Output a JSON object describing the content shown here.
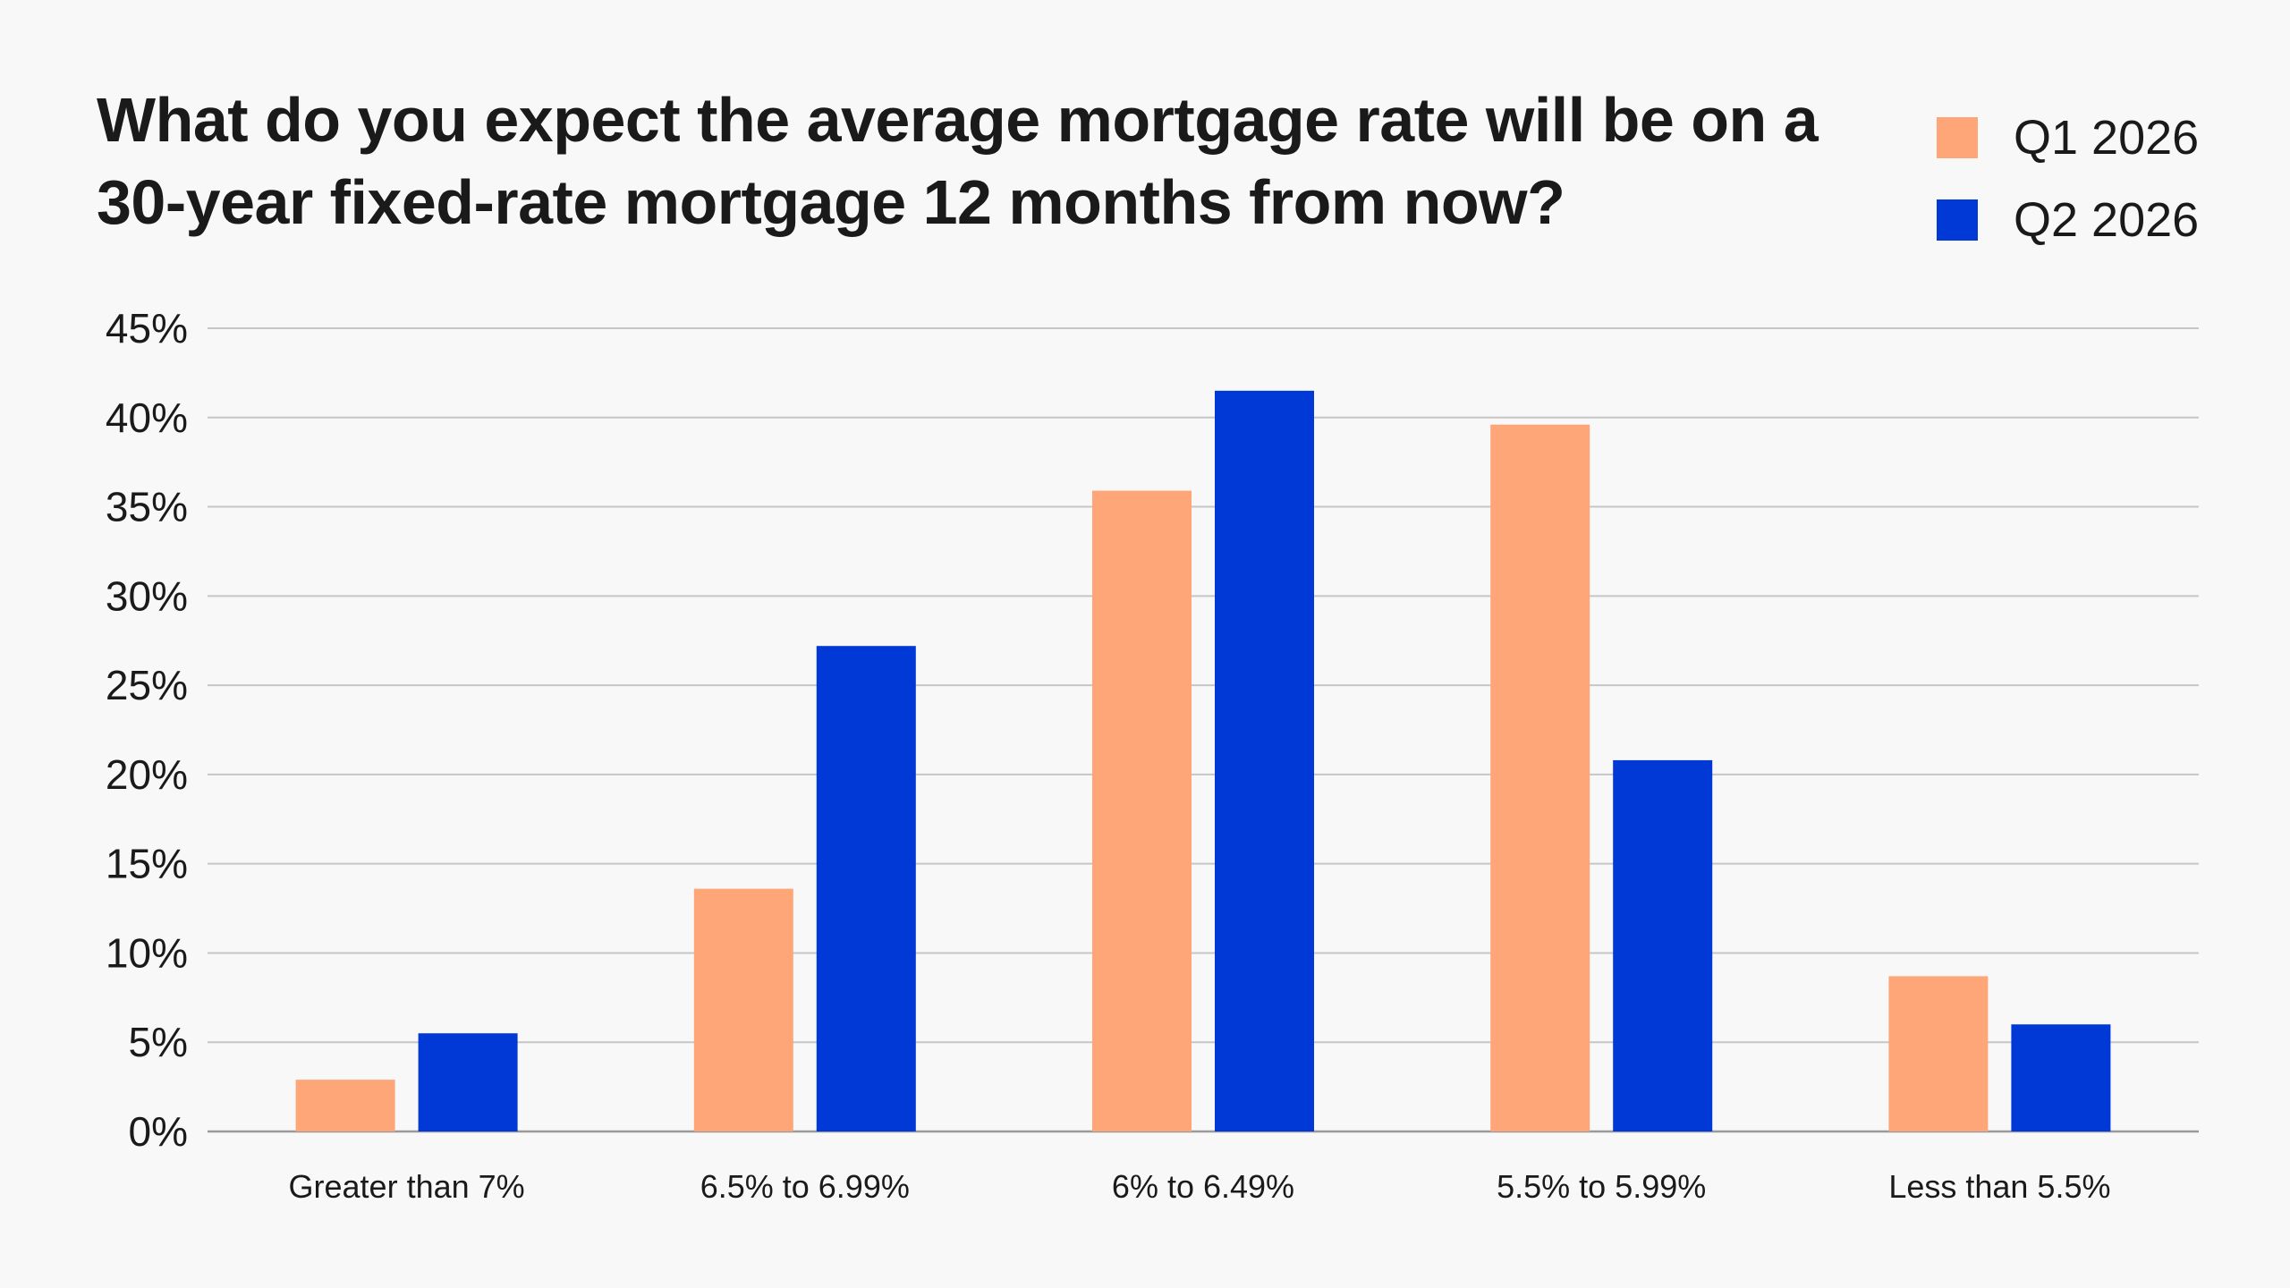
{
  "chart_data": {
    "type": "bar",
    "title": "What do you expect the average mortgage rate will be on a 30-year fixed-rate mortgage 12 months from now?",
    "categories": [
      "Greater than 7%",
      "6.5% to 6.99%",
      "6% to 6.49%",
      "5.5% to 5.99%",
      "Less than 5.5%"
    ],
    "series": [
      {
        "name": "Q1 2026",
        "color": "#ffa679",
        "values": [
          2.9,
          13.6,
          35.9,
          39.6,
          8.7
        ]
      },
      {
        "name": "Q2 2026",
        "color": "#0039d6",
        "values": [
          5.5,
          27.2,
          41.5,
          20.8,
          6.0
        ]
      }
    ],
    "ylim": [
      0,
      45
    ],
    "yticks": [
      0,
      5,
      10,
      15,
      20,
      25,
      30,
      35,
      40,
      45
    ],
    "ytick_labels": [
      "0%",
      "5%",
      "10%",
      "15%",
      "20%",
      "25%",
      "30%",
      "35%",
      "40%",
      "45%"
    ],
    "grid": "horizontal",
    "legend_position": "top-right",
    "xlabel": "",
    "ylabel": ""
  }
}
